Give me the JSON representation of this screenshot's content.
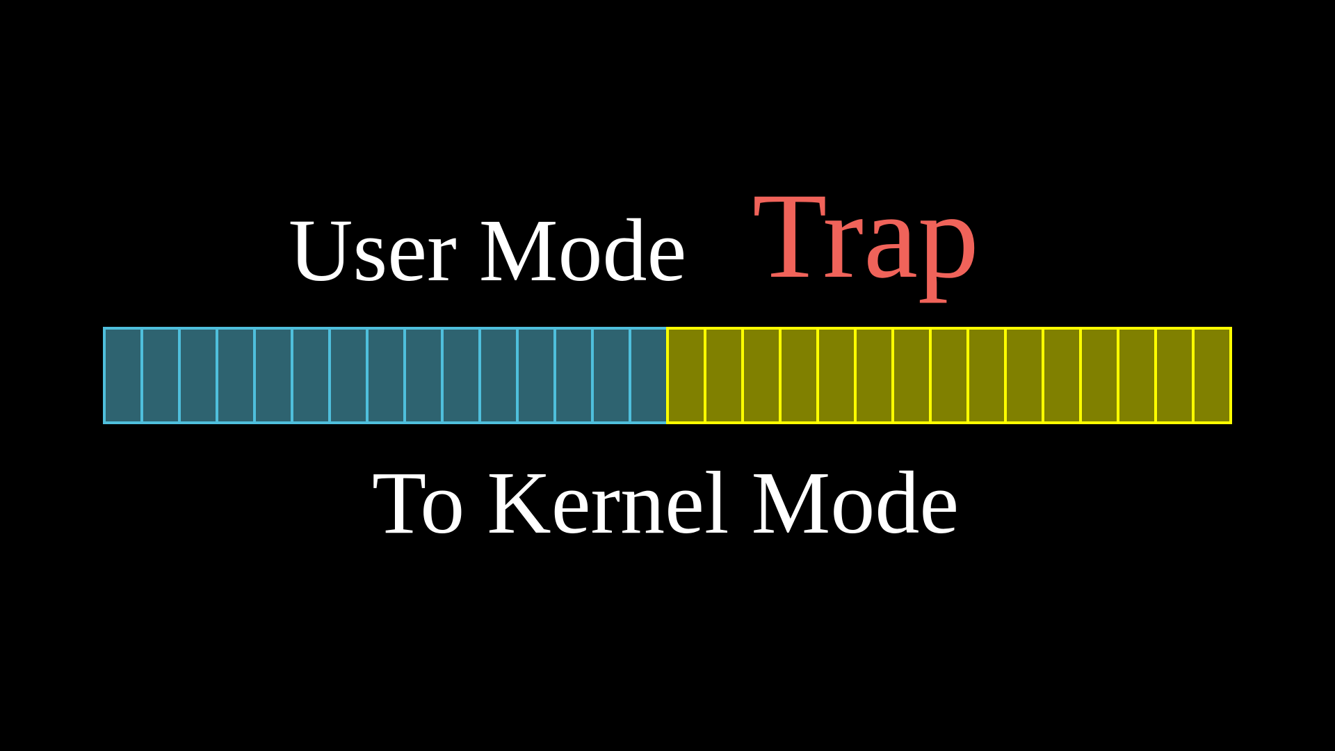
{
  "labels": {
    "user_mode": "User Mode",
    "trap": "Trap",
    "to_kernel": "To Kernel Mode"
  },
  "segments": {
    "user": {
      "cells": 15,
      "fill": "#2e6370",
      "stroke": "#4fbfdc"
    },
    "kernel": {
      "cells": 15,
      "fill": "#808000",
      "stroke": "#ffff00"
    }
  },
  "colors": {
    "background": "#000000",
    "text": "#ffffff",
    "trap": "#f0635a"
  }
}
